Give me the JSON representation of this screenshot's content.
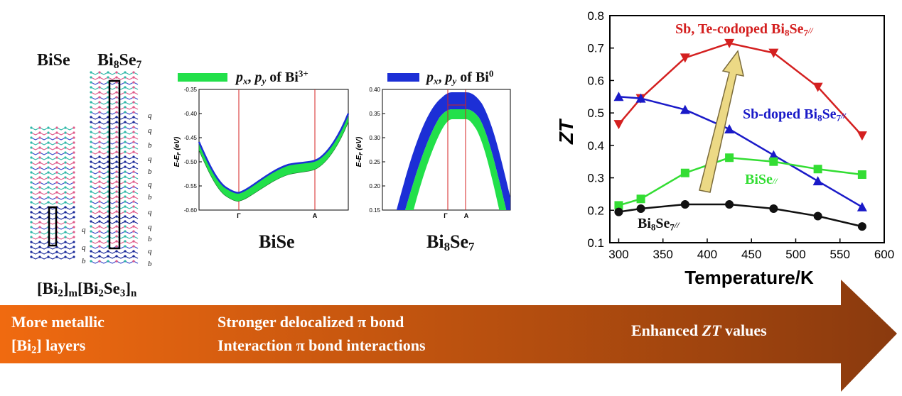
{
  "structures": {
    "left_label": "BiSe",
    "right_label_base": "Bi",
    "right_label_sub1": "8",
    "right_label_mid": "Se",
    "right_label_sub2": "7",
    "layer_labels_right": [
      "q",
      "q",
      "b",
      "q",
      "b",
      "q",
      "b",
      "q",
      "q",
      "b",
      "q",
      "b",
      "b"
    ],
    "layer_labels_left": [
      "q",
      "q",
      "b"
    ],
    "formula": {
      "a": "[Bi",
      "a_sub": "2",
      "b": "]",
      "b_sub": "m",
      "c": "[Bi",
      "c_sub": "2",
      "d": "Se",
      "d_sub": "3",
      "e": "]",
      "e_sub": "n"
    }
  },
  "band_bise": {
    "legend": {
      "p": "p",
      "x": "x",
      ",": ",",
      "py": "p",
      "y": "y",
      "text": " of Bi",
      "sup": "3+"
    },
    "ylabel": "E-E_F (eV)",
    "yticks": [
      "-0.35",
      "-0.40",
      "-0.45",
      "-0.50",
      "-0.55",
      "-0.60"
    ],
    "xticks": [
      "Γ",
      "A"
    ],
    "caption": "BiSe",
    "band_color": "#22e04a"
  },
  "band_bi8se7": {
    "legend": {
      "text": " of Bi",
      "sup": "0"
    },
    "ylabel": "E-E_F (eV)",
    "yticks": [
      "0.40",
      "0.35",
      "0.30",
      "0.25",
      "0.20",
      "0.15"
    ],
    "xticks": [
      "Γ",
      "A"
    ],
    "caption_base": "Bi",
    "caption_sub1": "8",
    "caption_mid": "Se",
    "caption_sub2": "7",
    "band_color": "#1c2fd6",
    "inner_color": "#22e04a"
  },
  "chart_data": {
    "type": "line",
    "xlabel": "Temperature/K",
    "ylabel": "ZT",
    "xlim": [
      290,
      600
    ],
    "ylim": [
      0.1,
      0.8
    ],
    "xticks": [
      300,
      350,
      400,
      450,
      500,
      550,
      600
    ],
    "yticks": [
      0.1,
      0.2,
      0.3,
      0.4,
      0.5,
      0.6,
      0.7,
      0.8
    ],
    "series": [
      {
        "name": "Sb, Te-codoped Bi8Se7//",
        "color": "#d42020",
        "marker": "triangle-down",
        "x": [
          300,
          325,
          375,
          425,
          475,
          525,
          575
        ],
        "values": [
          0.465,
          0.545,
          0.67,
          0.715,
          0.685,
          0.58,
          0.43
        ]
      },
      {
        "name": "Sb-doped Bi8Se7//",
        "color": "#1a1ac8",
        "marker": "triangle-up",
        "x": [
          300,
          325,
          375,
          425,
          475,
          525,
          575
        ],
        "values": [
          0.55,
          0.545,
          0.51,
          0.45,
          0.37,
          0.29,
          0.21
        ]
      },
      {
        "name": "BiSe//",
        "color": "#33dd33",
        "marker": "square",
        "x": [
          300,
          325,
          375,
          425,
          475,
          525,
          575
        ],
        "values": [
          0.215,
          0.235,
          0.315,
          0.362,
          0.35,
          0.327,
          0.31
        ]
      },
      {
        "name": "Bi8Se7//",
        "color": "#111111",
        "marker": "circle",
        "x": [
          300,
          325,
          375,
          425,
          475,
          525,
          575
        ],
        "values": [
          0.195,
          0.205,
          0.218,
          0.218,
          0.205,
          0.182,
          0.15
        ]
      }
    ],
    "labels": {
      "codoped": {
        "a": "Sb, Te-codoped Bi",
        "sub1": "8",
        "b": "Se",
        "sub2": "7",
        "c": "//"
      },
      "sbdoped": {
        "a": "Sb-doped Bi",
        "sub1": "8",
        "b": "Se",
        "sub2": "7",
        "c": "//"
      },
      "bise": {
        "a": "BiSe",
        "c": "//"
      },
      "bi8se7": {
        "a": "Bi",
        "sub1": "8",
        "b": "Se",
        "sub2": "7",
        "c": "//"
      }
    }
  },
  "banner": {
    "left_line1": "More metallic",
    "left_line2_a": "[Bi",
    "left_line2_sub": "2",
    "left_line2_b": "] layers",
    "mid_line1": "Stronger delocalized π bond",
    "mid_line2": "Interaction π bond interactions",
    "right_a": "Enhanced ",
    "right_zt": "ZT",
    "right_b": " values",
    "gradient_start": "#f06a10",
    "gradient_end": "#8a3a0e"
  }
}
